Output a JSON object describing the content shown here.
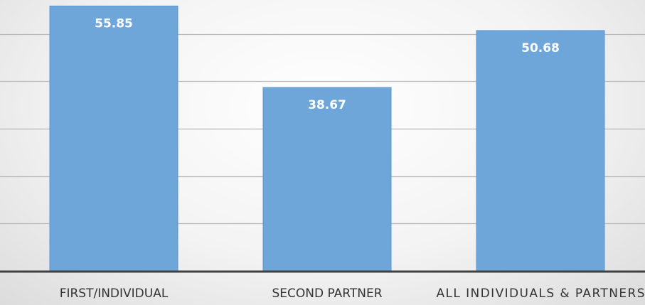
{
  "chart_data": {
    "type": "bar",
    "categories": [
      "FIRST/INDIVIDUAL",
      "SECOND PARTNER",
      "ALL INDIVIDUALS & PARTNERS"
    ],
    "values": [
      55.85,
      38.67,
      50.68
    ],
    "data_labels": [
      "55.85",
      "38.67",
      "50.68"
    ],
    "title": "",
    "xlabel": "",
    "ylabel": "",
    "ylim": [
      0,
      55
    ],
    "gridlines": [
      10,
      20,
      30,
      40,
      50
    ],
    "grid": true,
    "legend": "none",
    "bar_color": "#6fa6da",
    "bar_edge_color": "#5b95cf",
    "grid_color": "#b9b9b9",
    "axis_color": "#404040"
  }
}
